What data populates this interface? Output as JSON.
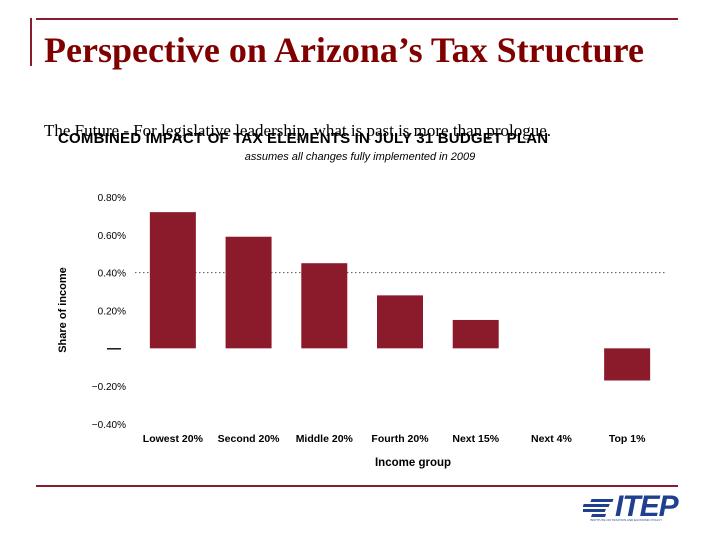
{
  "slide": {
    "title": "Perspective on Arizona’s Tax Structure",
    "subtitle": "The Future - For legislative leadership, what is past is more than prologue."
  },
  "logo": {
    "text": "ITEP",
    "tagline": "INSTITUTE ON TAXATION AND ECONOMIC POLICY"
  },
  "chart_data": {
    "type": "bar",
    "title": "COMBINED IMPACT OF TAX ELEMENTS IN JULY 31 BUDGET PLAN",
    "subtitle": "assumes all changes fully implemented in 2009",
    "xlabel": "Income group",
    "ylabel": "Share of income",
    "categories": [
      "Lowest 20%",
      "Second 20%",
      "Middle 20%",
      "Fourth 20%",
      "Next 15%",
      "Next 4%",
      "Top 1%"
    ],
    "values": [
      0.72,
      0.59,
      0.45,
      0.28,
      0.15,
      0.0,
      -0.17
    ],
    "ylim": [
      -0.4,
      0.8
    ],
    "yticks": [
      {
        "value": 0.8,
        "label": "0.80%"
      },
      {
        "value": 0.6,
        "label": "0.60%"
      },
      {
        "value": 0.4,
        "label": "0.40%"
      },
      {
        "value": 0.2,
        "label": "0.20%"
      },
      {
        "value": 0.0,
        "label": "—"
      },
      {
        "value": -0.2,
        "label": "−0.20%"
      },
      {
        "value": -0.4,
        "label": "−0.40%"
      }
    ],
    "reference_line": 0.4,
    "bar_color": "#8b1a2b"
  }
}
